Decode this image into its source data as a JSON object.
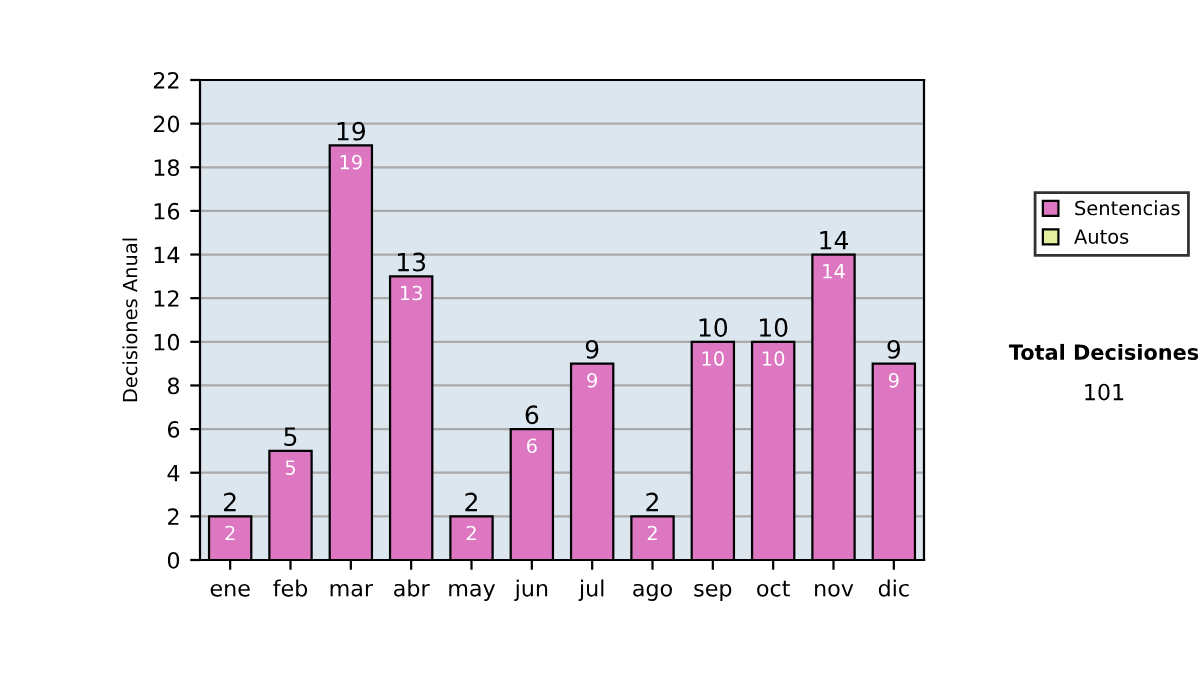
{
  "chart_data": {
    "type": "bar",
    "ylabel": "Decisiones Anual",
    "categories": [
      "ene",
      "feb",
      "mar",
      "abr",
      "may",
      "jun",
      "jul",
      "ago",
      "sep",
      "oct",
      "nov",
      "dic"
    ],
    "series": [
      {
        "name": "Sentencias",
        "color": "#dd77c2",
        "values": [
          2,
          5,
          19,
          13,
          2,
          6,
          9,
          2,
          10,
          10,
          14,
          9
        ]
      },
      {
        "name": "Autos",
        "color": "#e6eea0",
        "values": [
          null,
          null,
          null,
          null,
          null,
          null,
          null,
          null,
          null,
          null,
          null,
          null
        ]
      }
    ],
    "stacked": true,
    "data_labels": true,
    "totals": [
      "2",
      "5",
      "19",
      "13",
      "2",
      "6",
      "9",
      "2",
      "10",
      "10",
      "14",
      "9"
    ],
    "ylim": [
      0,
      22
    ],
    "yticks": [
      0,
      2,
      4,
      6,
      8,
      10,
      12,
      14,
      16,
      18,
      20,
      22
    ],
    "grid": "y",
    "legend": "right",
    "annotations": [
      "Total Decisiones",
      "101"
    ]
  }
}
